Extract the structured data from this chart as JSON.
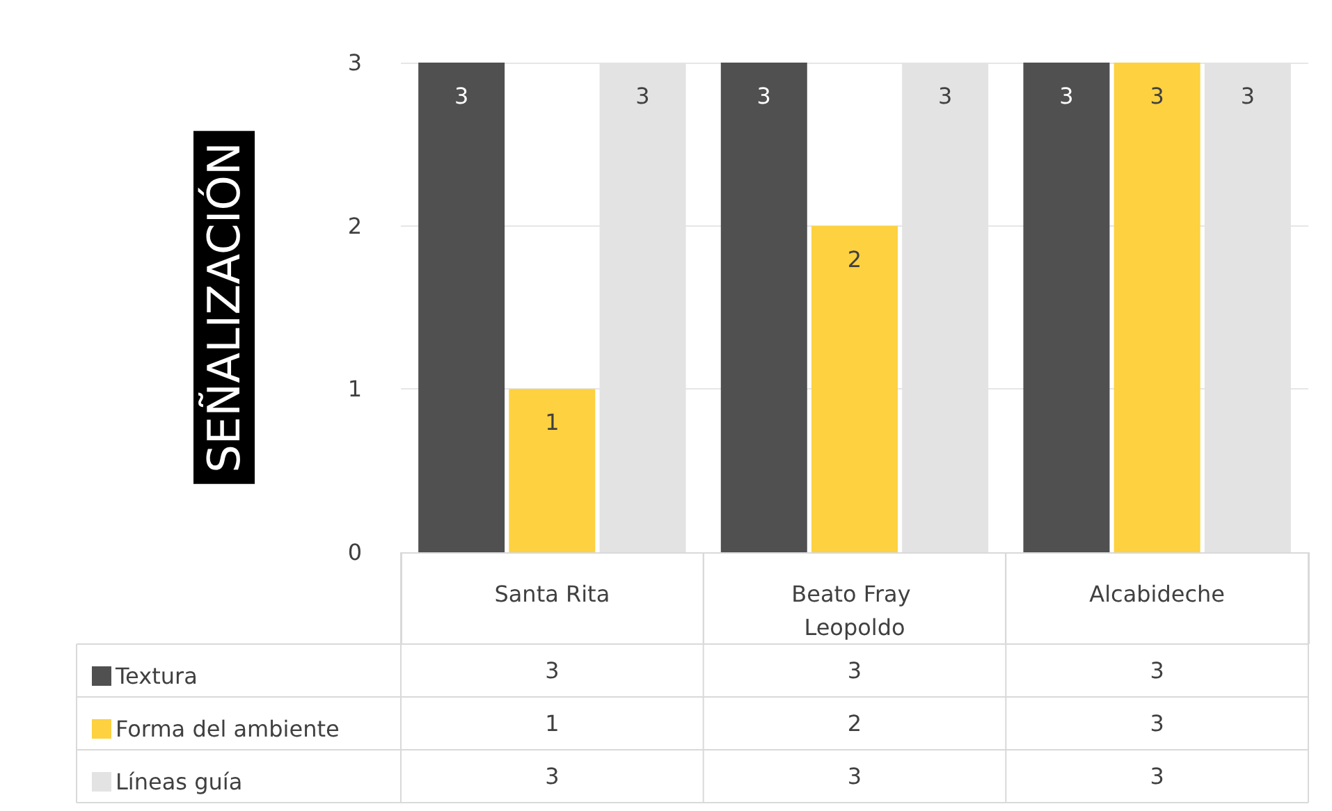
{
  "chart_data": {
    "type": "bar",
    "ylabel": "SEÑALIZACIÓN",
    "categories": [
      "Santa Rita",
      "Beato Fray Leopoldo",
      "Alcabideche"
    ],
    "series": [
      {
        "name": "Textura",
        "color": "#505050",
        "values": [
          3,
          3,
          3
        ],
        "value_labels": [
          "3",
          "3",
          "3"
        ]
      },
      {
        "name": "Forma del ambiente",
        "color": "#fdd140",
        "values": [
          1,
          2,
          3
        ],
        "value_labels": [
          "1",
          "2",
          "3"
        ]
      },
      {
        "name": "Líneas guía",
        "color": "#e3e3e3",
        "values": [
          3,
          3,
          3
        ],
        "value_labels": [
          "3",
          "3",
          "3"
        ]
      }
    ],
    "ylim": [
      0,
      3
    ],
    "yticks": [
      0,
      1,
      2,
      3
    ],
    "grid": "y",
    "legend": "bottom left",
    "data_labels": true
  }
}
